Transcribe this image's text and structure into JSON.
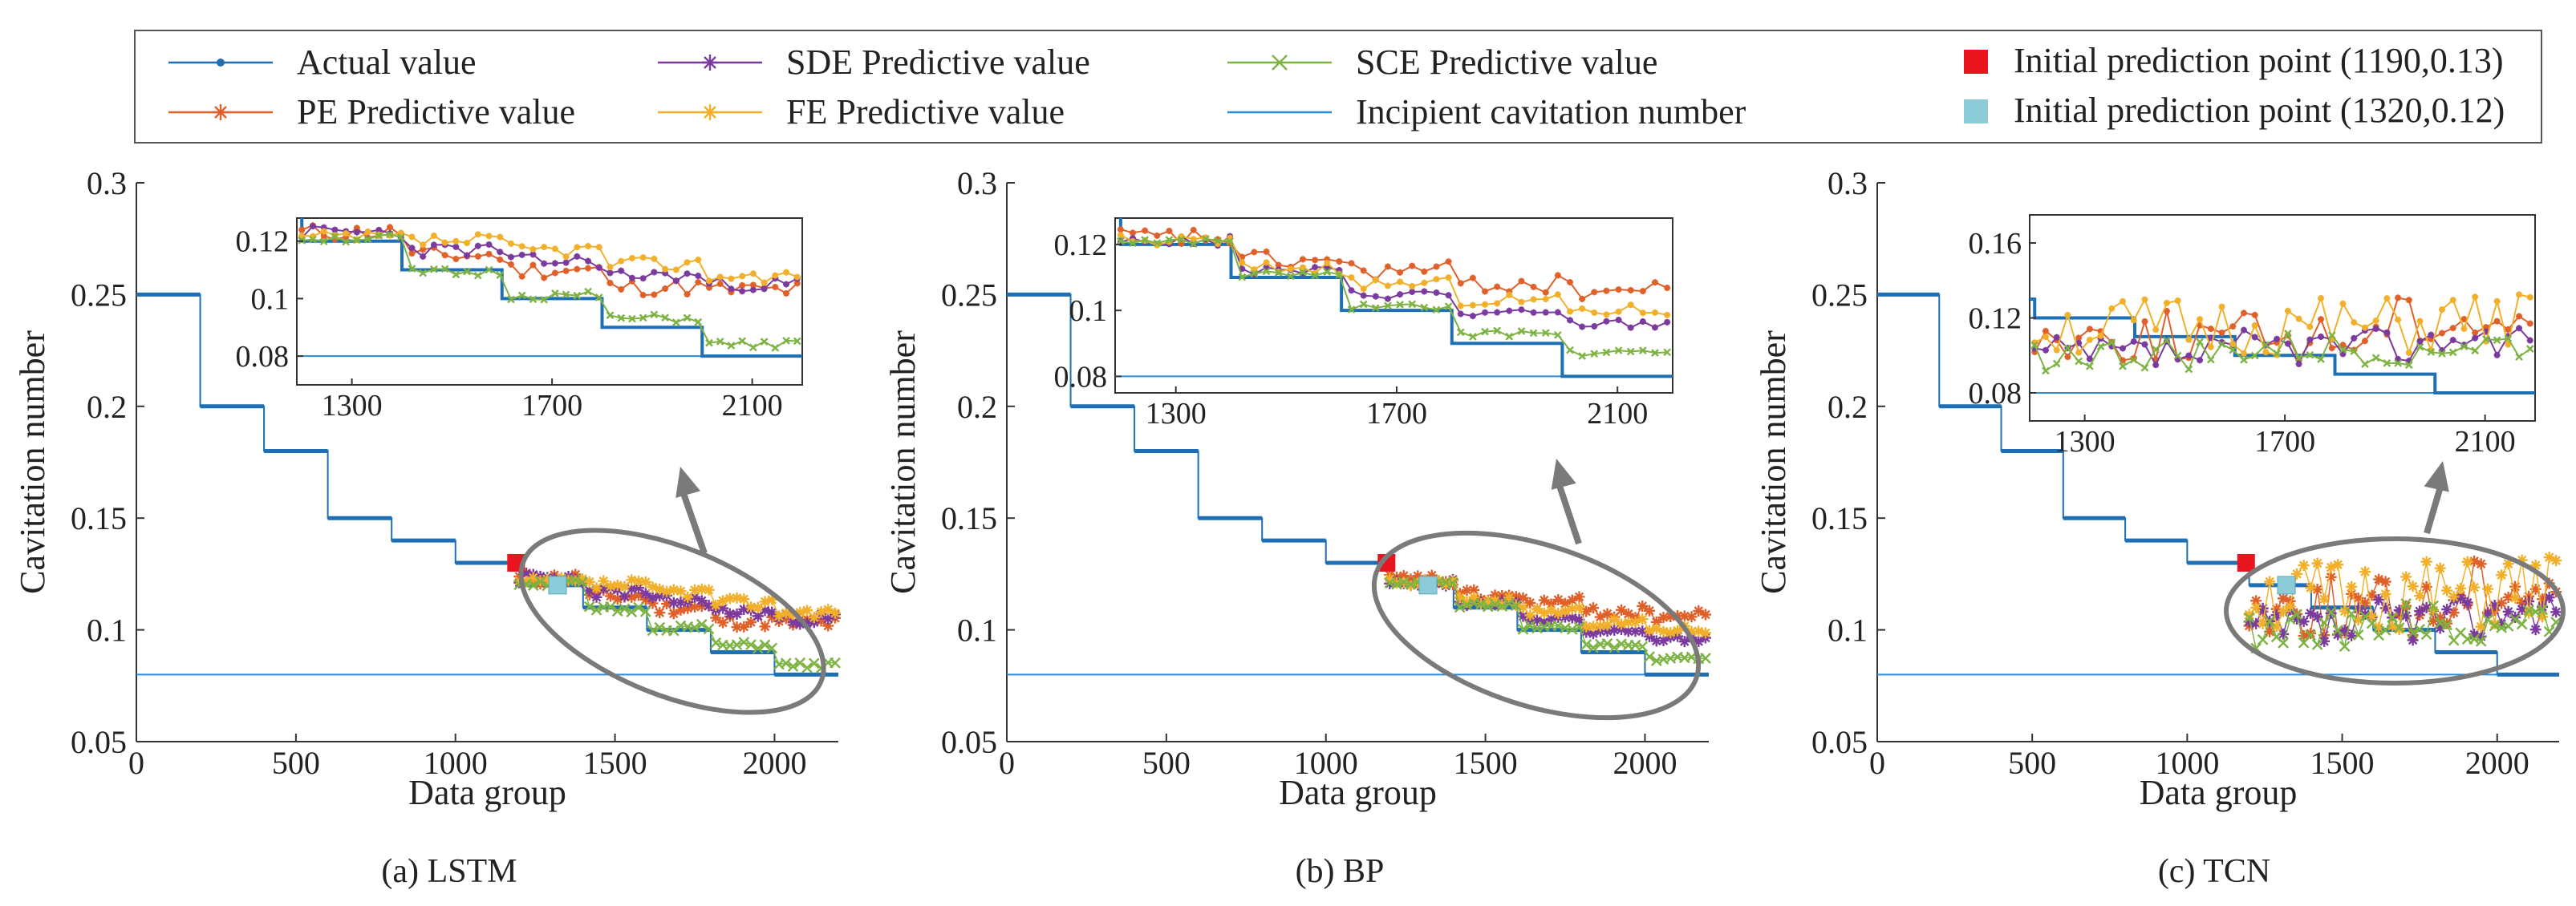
{
  "legend": {
    "items": [
      {
        "label": "Actual value",
        "color": "#1f6fb4",
        "marker": "dot"
      },
      {
        "label": "PE Predictive value",
        "color": "#e0602a",
        "marker": "star"
      },
      {
        "label": "SDE Predictive value",
        "color": "#7b3a9e",
        "marker": "star"
      },
      {
        "label": "FE Predictive value",
        "color": "#f2b02a",
        "marker": "star"
      },
      {
        "label": "SCE Predictive value",
        "color": "#7cb342",
        "marker": "x"
      },
      {
        "label": "Incipient cavitation number",
        "color": "#2b8ad8",
        "marker": "line"
      },
      {
        "label": "Initial prediction point (1190,0.13)",
        "color": "#e8141e",
        "marker": "square"
      },
      {
        "label": "Initial prediction point (1320,0.12)",
        "color": "#8ccbd8",
        "marker": "square"
      }
    ]
  },
  "chart_data": [
    {
      "type": "line",
      "caption": "(a) LSTM",
      "xlabel": "Data group",
      "ylabel": "Cavitation number",
      "xlim": [
        0,
        2200
      ],
      "ylim": [
        0.05,
        0.3
      ],
      "xticks": [
        0,
        500,
        1000,
        1500,
        2000
      ],
      "yticks": [
        0.05,
        0.1,
        0.15,
        0.2,
        0.25,
        0.3
      ],
      "ytick_labels": [
        "0.05",
        "0.1",
        "0.15",
        "0.2",
        "0.25",
        "0.3"
      ],
      "actual_steps": [
        [
          0,
          0.25
        ],
        [
          200,
          0.2
        ],
        [
          400,
          0.18
        ],
        [
          600,
          0.15
        ],
        [
          800,
          0.14
        ],
        [
          1000,
          0.13
        ],
        [
          1200,
          0.12
        ],
        [
          1400,
          0.11
        ],
        [
          1600,
          0.1
        ],
        [
          1800,
          0.09
        ],
        [
          2000,
          0.08
        ],
        [
          2200,
          0.08
        ]
      ],
      "incipient_cavitation_number": 0.08,
      "initial_points": [
        {
          "x": 1190,
          "y": 0.13
        },
        {
          "x": 1320,
          "y": 0.12
        }
      ],
      "series": [
        {
          "key": "PE",
          "levels": [
            [
              1200,
              0.123
            ],
            [
              1400,
              0.115
            ],
            [
              1600,
              0.11
            ],
            [
              1800,
              0.104
            ],
            [
              2000,
              0.103
            ],
            [
              2200,
              0.102
            ]
          ],
          "noise": 0.003
        },
        {
          "key": "SDE",
          "levels": [
            [
              1200,
              0.123
            ],
            [
              1400,
              0.117
            ],
            [
              1600,
              0.113
            ],
            [
              1800,
              0.108
            ],
            [
              2000,
              0.105
            ],
            [
              2200,
              0.104
            ]
          ],
          "noise": 0.0025
        },
        {
          "key": "FE",
          "levels": [
            [
              1200,
              0.121
            ],
            [
              1400,
              0.12
            ],
            [
              1600,
              0.117
            ],
            [
              1800,
              0.112
            ],
            [
              2000,
              0.108
            ],
            [
              2200,
              0.105
            ]
          ],
          "noise": 0.0025
        },
        {
          "key": "SCE",
          "levels": [
            [
              1200,
              0.121
            ],
            [
              1400,
              0.109
            ],
            [
              1600,
              0.101
            ],
            [
              1800,
              0.093
            ],
            [
              2000,
              0.084
            ],
            [
              2200,
              0.083
            ]
          ],
          "noise": 0.0015
        }
      ],
      "inset": {
        "xlim": [
          1190,
          2200
        ],
        "ylim": [
          0.07,
          0.128
        ],
        "xticks": [
          1300,
          1700,
          2100
        ],
        "yticks": [
          0.08,
          0.1,
          0.12
        ],
        "ytick_labels": [
          "0.08",
          "0.1",
          "0.12"
        ]
      }
    },
    {
      "type": "line",
      "caption": "(b) BP",
      "xlabel": "Data group",
      "ylabel": "Cavitation number",
      "xlim": [
        0,
        2200
      ],
      "ylim": [
        0.05,
        0.3
      ],
      "xticks": [
        0,
        500,
        1000,
        1500,
        2000
      ],
      "yticks": [
        0.05,
        0.1,
        0.15,
        0.2,
        0.25,
        0.3
      ],
      "ytick_labels": [
        "0.05",
        "0.1",
        "0.15",
        "0.2",
        "0.25",
        "0.3"
      ],
      "actual_steps": [
        [
          0,
          0.25
        ],
        [
          200,
          0.2
        ],
        [
          400,
          0.18
        ],
        [
          600,
          0.15
        ],
        [
          800,
          0.14
        ],
        [
          1000,
          0.13
        ],
        [
          1200,
          0.12
        ],
        [
          1400,
          0.11
        ],
        [
          1600,
          0.1
        ],
        [
          1800,
          0.09
        ],
        [
          2000,
          0.08
        ],
        [
          2200,
          0.08
        ]
      ],
      "incipient_cavitation_number": 0.08,
      "initial_points": [
        {
          "x": 1190,
          "y": 0.13
        },
        {
          "x": 1320,
          "y": 0.12
        }
      ],
      "series": [
        {
          "key": "PE",
          "levels": [
            [
              1200,
              0.122
            ],
            [
              1400,
              0.115
            ],
            [
              1600,
              0.112
            ],
            [
              1800,
              0.108
            ],
            [
              2000,
              0.106
            ],
            [
              2200,
              0.104
            ]
          ],
          "noise": 0.003
        },
        {
          "key": "SDE",
          "levels": [
            [
              1200,
              0.121
            ],
            [
              1400,
              0.112
            ],
            [
              1600,
              0.105
            ],
            [
              1800,
              0.099
            ],
            [
              2000,
              0.096
            ],
            [
              2200,
              0.095
            ]
          ],
          "noise": 0.0015
        },
        {
          "key": "FE",
          "levels": [
            [
              1200,
              0.121
            ],
            [
              1400,
              0.113
            ],
            [
              1600,
              0.108
            ],
            [
              1800,
              0.103
            ],
            [
              2000,
              0.1
            ],
            [
              2200,
              0.099
            ]
          ],
          "noise": 0.002
        },
        {
          "key": "SCE",
          "levels": [
            [
              1200,
              0.121
            ],
            [
              1400,
              0.111
            ],
            [
              1600,
              0.101
            ],
            [
              1800,
              0.093
            ],
            [
              2000,
              0.087
            ],
            [
              2200,
              0.086
            ]
          ],
          "noise": 0.001
        }
      ],
      "inset": {
        "xlim": [
          1190,
          2200
        ],
        "ylim": [
          0.075,
          0.128
        ],
        "xticks": [
          1300,
          1700,
          2100
        ],
        "yticks": [
          0.08,
          0.1,
          0.12
        ],
        "ytick_labels": [
          "0.08",
          "0.1",
          "0.12"
        ]
      }
    },
    {
      "type": "line",
      "caption": "(c) TCN",
      "xlabel": "Data group",
      "ylabel": "Cavitation number",
      "xlim": [
        0,
        2200
      ],
      "ylim": [
        0.05,
        0.3
      ],
      "xticks": [
        0,
        500,
        1000,
        1500,
        2000
      ],
      "yticks": [
        0.05,
        0.1,
        0.15,
        0.2,
        0.25,
        0.3
      ],
      "ytick_labels": [
        "0.05",
        "0.1",
        "0.15",
        "0.2",
        "0.25",
        "0.3"
      ],
      "actual_steps": [
        [
          0,
          0.25
        ],
        [
          200,
          0.2
        ],
        [
          400,
          0.18
        ],
        [
          600,
          0.15
        ],
        [
          800,
          0.14
        ],
        [
          1000,
          0.13
        ],
        [
          1200,
          0.12
        ],
        [
          1400,
          0.11
        ],
        [
          1600,
          0.1
        ],
        [
          1800,
          0.09
        ],
        [
          2000,
          0.08
        ],
        [
          2200,
          0.08
        ]
      ],
      "incipient_cavitation_number": 0.08,
      "initial_points": [
        {
          "x": 1190,
          "y": 0.13
        },
        {
          "x": 1320,
          "y": 0.12
        }
      ],
      "series": [
        {
          "key": "PE",
          "levels": [
            [
              1200,
              0.11
            ],
            [
              1600,
              0.11
            ],
            [
              1900,
              0.12
            ],
            [
              2200,
              0.14
            ]
          ],
          "noise": 0.014
        },
        {
          "key": "SDE",
          "levels": [
            [
              1200,
              0.1
            ],
            [
              1600,
              0.105
            ],
            [
              2000,
              0.11
            ],
            [
              2200,
              0.115
            ]
          ],
          "noise": 0.01
        },
        {
          "key": "FE",
          "levels": [
            [
              1200,
              0.115
            ],
            [
              1600,
              0.115
            ],
            [
              2000,
              0.118
            ],
            [
              2200,
              0.12
            ]
          ],
          "noise": 0.016
        },
        {
          "key": "SCE",
          "levels": [
            [
              1200,
              0.1
            ],
            [
              1600,
              0.103
            ],
            [
              2000,
              0.105
            ],
            [
              2200,
              0.106
            ]
          ],
          "noise": 0.009
        }
      ],
      "inset": {
        "xlim": [
          1190,
          2200
        ],
        "ylim": [
          0.065,
          0.175
        ],
        "xticks": [
          1300,
          1700,
          2100
        ],
        "yticks": [
          0.08,
          0.12,
          0.16
        ],
        "ytick_labels": [
          "0.08",
          "0.12",
          "0.16"
        ]
      }
    }
  ]
}
